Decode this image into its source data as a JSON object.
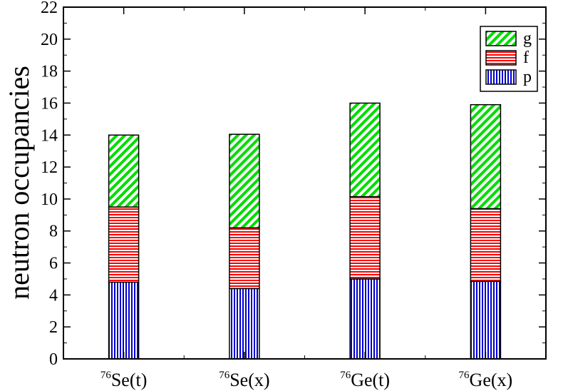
{
  "chart_data": {
    "type": "bar",
    "stacked": true,
    "title": "",
    "xlabel": "",
    "ylabel": "neutron occupancies",
    "ylim": [
      0,
      22
    ],
    "yticks": [
      0,
      2,
      4,
      6,
      8,
      10,
      12,
      14,
      16,
      18,
      20,
      22
    ],
    "categories": [
      {
        "mass": "76",
        "label": "Se(t)"
      },
      {
        "mass": "76",
        "label": "Se(x)"
      },
      {
        "mass": "76",
        "label": "Ge(t)"
      },
      {
        "mass": "76",
        "label": "Ge(x)"
      }
    ],
    "series": [
      {
        "name": "p",
        "color": "#0000cc",
        "pattern": "vertical-hatch",
        "values": [
          4.8,
          4.4,
          5.0,
          4.85
        ]
      },
      {
        "name": "f",
        "color": "#ff0000",
        "pattern": "horizontal-hatch",
        "values": [
          4.7,
          3.8,
          5.15,
          4.55
        ]
      },
      {
        "name": "g",
        "color": "#00dd00",
        "pattern": "diagonal-hatch",
        "values": [
          4.5,
          5.85,
          5.85,
          6.5
        ]
      }
    ],
    "legend": {
      "position": "top-right",
      "order": [
        "g",
        "f",
        "p"
      ]
    },
    "grid": false
  }
}
